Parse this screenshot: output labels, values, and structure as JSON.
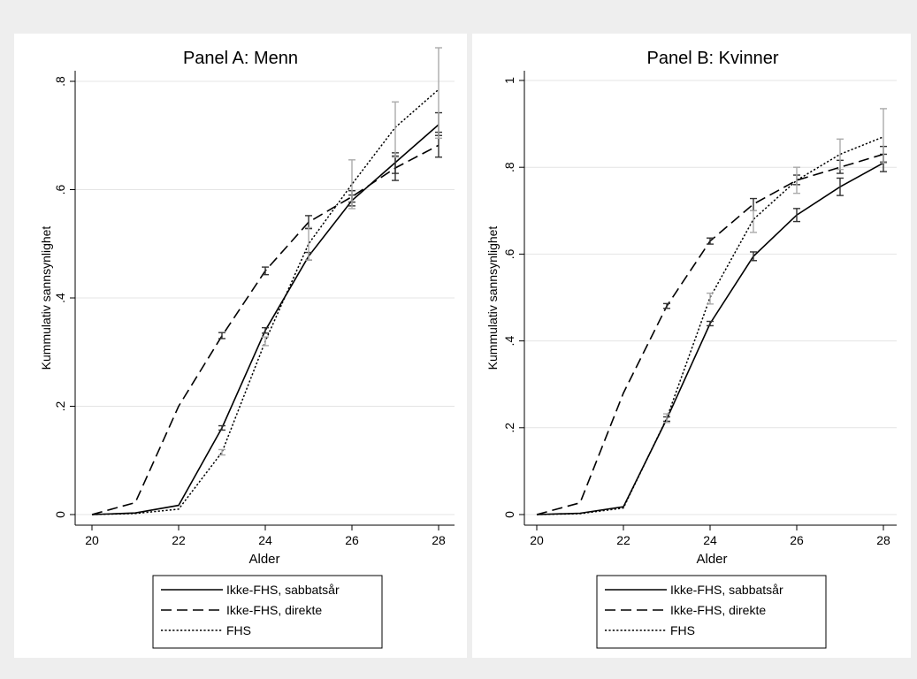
{
  "chart_data": [
    {
      "type": "line",
      "title": "Panel A: Menn",
      "xlabel": "Alder",
      "ylabel": "Kummulativ sannsynlighet",
      "x": [
        20,
        21,
        22,
        23,
        24,
        25,
        26,
        27,
        28
      ],
      "x_ticks": [
        20,
        22,
        24,
        26,
        28
      ],
      "x_tick_labels": [
        "20",
        "22",
        "24",
        "26",
        "28"
      ],
      "y_ticks": [
        0,
        0.2,
        0.4,
        0.6,
        0.8
      ],
      "y_tick_labels": [
        "0",
        ".2",
        ".4",
        ".6",
        ".8"
      ],
      "xlim": [
        20,
        28
      ],
      "ylim": [
        0,
        0.88
      ],
      "grid": true,
      "legend": "bottom",
      "series": [
        {
          "name": "Ikke-FHS, sabbatsår",
          "style": "solid",
          "values": [
            0.0,
            0.003,
            0.017,
            0.16,
            0.34,
            0.477,
            0.58,
            0.65,
            0.72
          ],
          "err_low": [
            null,
            null,
            null,
            0.156,
            0.335,
            0.47,
            0.57,
            0.63,
            0.7
          ],
          "err_high": [
            null,
            null,
            null,
            0.164,
            0.345,
            0.484,
            0.59,
            0.668,
            0.742
          ]
        },
        {
          "name": "Ikke-FHS, direkte",
          "style": "dashed",
          "values": [
            0.0,
            0.022,
            0.2,
            0.33,
            0.45,
            0.54,
            0.587,
            0.64,
            0.682
          ],
          "err_low": [
            null,
            null,
            null,
            0.325,
            0.443,
            0.528,
            0.577,
            0.617,
            0.66
          ],
          "err_high": [
            null,
            null,
            null,
            0.336,
            0.457,
            0.552,
            0.598,
            0.662,
            0.706
          ]
        },
        {
          "name": "FHS",
          "style": "dotted",
          "values": [
            0.0,
            0.002,
            0.01,
            0.115,
            0.32,
            0.5,
            0.61,
            0.715,
            0.785
          ],
          "err_low": [
            null,
            null,
            null,
            0.11,
            0.312,
            0.47,
            0.565,
            0.66,
            0.695
          ],
          "err_high": [
            null,
            null,
            null,
            0.12,
            0.328,
            0.53,
            0.655,
            0.762,
            0.862
          ]
        }
      ]
    },
    {
      "type": "line",
      "title": "Panel B: Kvinner",
      "xlabel": "Alder",
      "ylabel": "Kummulativ sannsynlighet",
      "x": [
        20,
        21,
        22,
        23,
        24,
        25,
        26,
        27,
        28
      ],
      "x_ticks": [
        20,
        22,
        24,
        26,
        28
      ],
      "x_tick_labels": [
        "20",
        "22",
        "24",
        "26",
        "28"
      ],
      "y_ticks": [
        0,
        0.2,
        0.4,
        0.6,
        0.8,
        1
      ],
      "y_tick_labels": [
        "0",
        ".2",
        ".4",
        ".6",
        ".8",
        "1"
      ],
      "xlim": [
        20,
        28
      ],
      "ylim": [
        0,
        1.0
      ],
      "grid": true,
      "legend": "bottom",
      "series": [
        {
          "name": "Ikke-FHS, sabbatsår",
          "style": "solid",
          "values": [
            0.0,
            0.003,
            0.018,
            0.22,
            0.44,
            0.595,
            0.69,
            0.755,
            0.81
          ],
          "err_low": [
            null,
            null,
            null,
            0.215,
            0.435,
            0.585,
            0.675,
            0.735,
            0.79
          ],
          "err_high": [
            null,
            null,
            null,
            0.225,
            0.445,
            0.605,
            0.705,
            0.775,
            0.83
          ]
        },
        {
          "name": "Ikke-FHS, direkte",
          "style": "dashed",
          "values": [
            0.0,
            0.027,
            0.28,
            0.48,
            0.63,
            0.715,
            0.77,
            0.8,
            0.83
          ],
          "err_low": [
            null,
            null,
            null,
            0.475,
            0.623,
            0.7,
            0.76,
            0.786,
            0.812
          ],
          "err_high": [
            null,
            null,
            null,
            0.486,
            0.637,
            0.728,
            0.782,
            0.816,
            0.848
          ]
        },
        {
          "name": "FHS",
          "style": "dotted",
          "values": [
            0.0,
            0.002,
            0.015,
            0.222,
            0.5,
            0.68,
            0.77,
            0.83,
            0.87
          ],
          "err_low": [
            null,
            null,
            null,
            0.212,
            0.485,
            0.65,
            0.74,
            0.795,
            0.81
          ],
          "err_high": [
            null,
            null,
            null,
            0.232,
            0.51,
            0.7,
            0.8,
            0.865,
            0.935
          ]
        }
      ]
    }
  ]
}
